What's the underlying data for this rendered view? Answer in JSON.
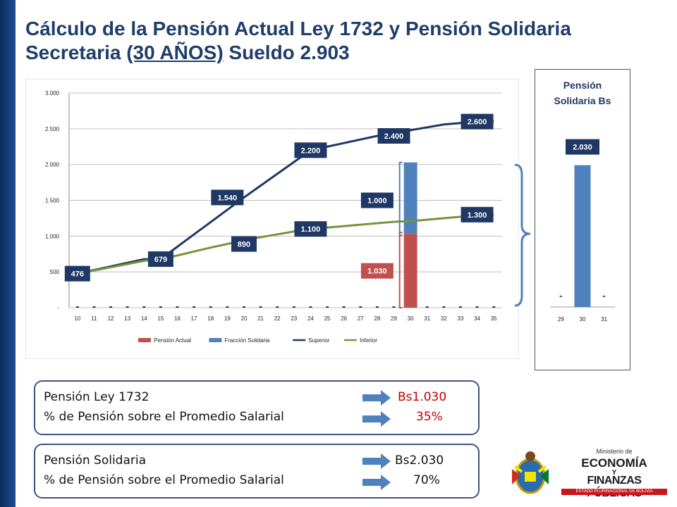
{
  "title": {
    "line1": "Cálculo de la Pensión Actual Ley 1732 y Pensión Solidaria",
    "line2_prefix": "Secretaria ",
    "line2_underlined": "(30 AÑOS)",
    "line2_suffix": " Sueldo 2.903"
  },
  "chart_data": [
    {
      "type": "line",
      "title": "",
      "xlabel": "",
      "ylabel": "",
      "x": [
        10,
        11,
        12,
        13,
        14,
        15,
        16,
        17,
        18,
        19,
        20,
        21,
        22,
        23,
        24,
        25,
        26,
        27,
        28,
        29,
        30,
        31,
        32,
        33,
        34,
        35
      ],
      "ylim": [
        0,
        3000
      ],
      "yticks": [
        "-",
        "500",
        "1.000",
        "1.500",
        "2.000",
        "2.500",
        "3.000"
      ],
      "grid": true,
      "legend": "bottom",
      "series": [
        {
          "name": "Pensión Actual",
          "kind": "bar",
          "color": "#c0504d",
          "values": [
            0,
            0,
            0,
            0,
            0,
            0,
            0,
            0,
            0,
            0,
            0,
            0,
            0,
            0,
            0,
            0,
            0,
            0,
            0,
            0,
            1030,
            0,
            0,
            0,
            0,
            0
          ]
        },
        {
          "name": "Fracción Solidaria",
          "kind": "bar",
          "color": "#4f81bd",
          "values": [
            0,
            0,
            0,
            0,
            0,
            0,
            0,
            0,
            0,
            0,
            0,
            0,
            0,
            0,
            0,
            0,
            0,
            0,
            0,
            0,
            1000,
            0,
            0,
            0,
            0,
            0
          ]
        },
        {
          "name": "Superior",
          "kind": "line",
          "color": "#1f3864",
          "values": [
            476,
            526,
            577,
            627,
            678,
            679,
            852,
            1025,
            1196,
            1368,
            1540,
            1705,
            1870,
            2035,
            2200,
            2250,
            2300,
            2350,
            2400,
            2440,
            2480,
            2520,
            2560,
            2580,
            2600,
            2600
          ]
        },
        {
          "name": "Inferior",
          "kind": "line",
          "color": "#77933c",
          "values": [
            476,
            520,
            565,
            610,
            655,
            679,
            730,
            785,
            840,
            890,
            945,
            985,
            1025,
            1065,
            1100,
            1120,
            1140,
            1160,
            1180,
            1200,
            1210,
            1230,
            1250,
            1270,
            1290,
            1300
          ]
        }
      ],
      "data_labels": [
        {
          "x": 10,
          "y": 476,
          "text": "476"
        },
        {
          "x": 15,
          "y": 679,
          "text": "679"
        },
        {
          "x": 20,
          "y": 890,
          "text": "890"
        },
        {
          "x": 19,
          "y": 1540,
          "text": "1.540"
        },
        {
          "x": 24,
          "y": 2200,
          "text": "2.200"
        },
        {
          "x": 29,
          "y": 2400,
          "text": "2.400"
        },
        {
          "x": 34,
          "y": 2600,
          "text": "2.600"
        },
        {
          "x": 24,
          "y": 1100,
          "text": "1.100"
        },
        {
          "x": 34,
          "y": 1300,
          "text": "1.300"
        },
        {
          "x": 28,
          "y": 1500,
          "text": "1.000"
        },
        {
          "x": 28,
          "y": 515,
          "text": "1.030"
        }
      ]
    },
    {
      "type": "bar",
      "title": "Pensión Solidaria Bs",
      "categories": [
        "29",
        "30",
        "31"
      ],
      "values": [
        0,
        2030,
        0
      ],
      "value_labels": [
        "-",
        "2.030",
        "-"
      ],
      "color": "#4f81bd"
    }
  ],
  "info_box_1": {
    "row1_label": "Pensión Ley 1732",
    "row1_value": "Bs1.030",
    "row2_label": "% de Pensión sobre el Promedio Salarial",
    "row2_value": "35%",
    "value_color": "#c00000"
  },
  "info_box_2": {
    "row1_label": "Pensión Solidaria",
    "row1_value": "Bs2.030",
    "row2_label": "% de Pensión sobre el Promedio Salarial",
    "row2_value": "70%",
    "value_color": "#111111"
  },
  "logo": {
    "line1": "Ministerio de",
    "line2": "ECONOMÍA",
    "line3": "Y",
    "line4": "FINANZAS PÚBLICAS",
    "line5": "ESTADO PLURINACIONAL DE BOLIVIA"
  }
}
